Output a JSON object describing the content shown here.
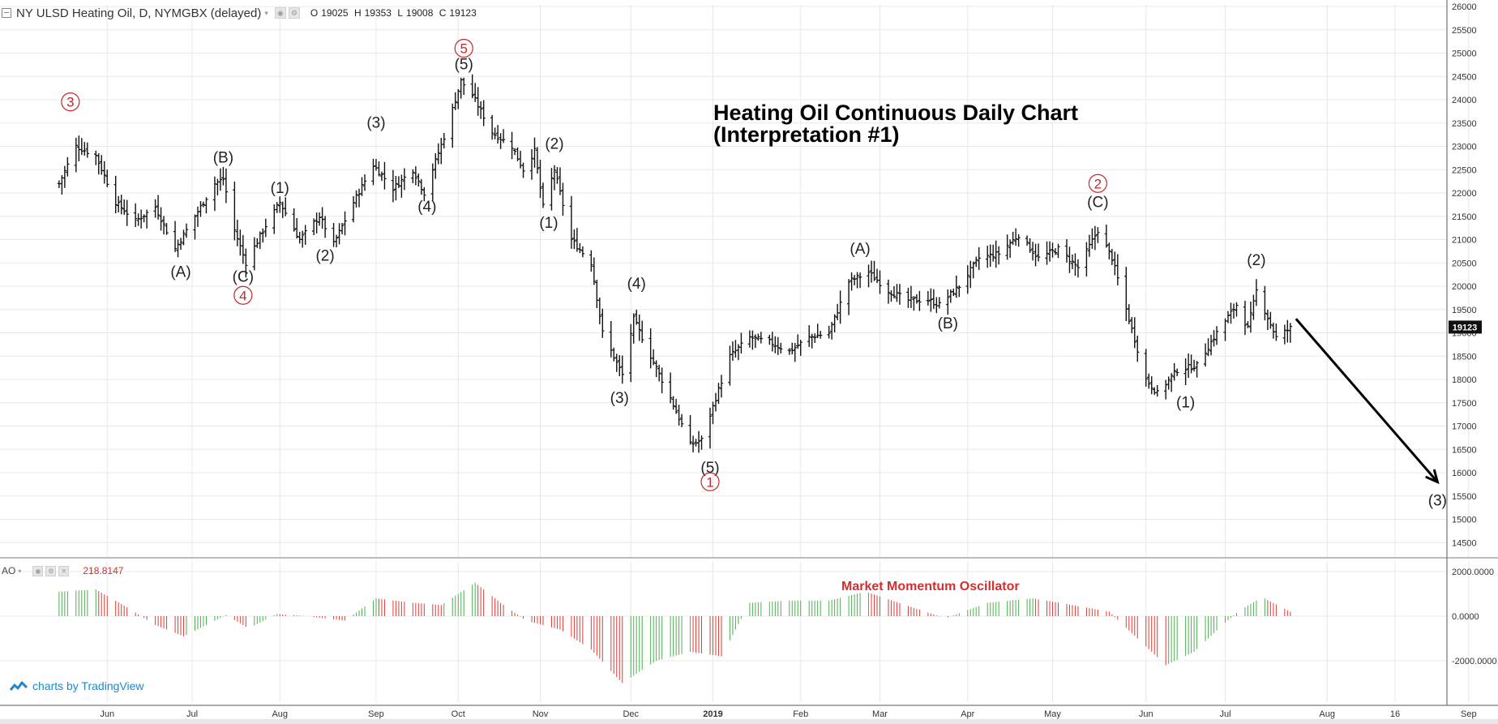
{
  "header": {
    "symbol": "NY ULSD Heating Oil, D, NYMGBX (delayed)",
    "ohlc": [
      {
        "key": "O",
        "value": "19025"
      },
      {
        "key": "H",
        "value": "19353"
      },
      {
        "key": "L",
        "value": "19008"
      },
      {
        "key": "C",
        "value": "19123"
      }
    ]
  },
  "indicator": {
    "name": "AO",
    "value": "218.8147"
  },
  "branding": "charts by TradingView",
  "colors": {
    "bar": "#111111",
    "ao_up": "#4caf50",
    "ao_down": "#e53935",
    "count_red": "#c62828",
    "price_tag": "#111111",
    "grid": "#e8e8e8"
  },
  "chart_data": [
    {
      "type": "ohlc",
      "title": "Heating Oil Continuous Daily Chart",
      "subtitle": "(Interpretation #1)",
      "ylim": [
        14000,
        26000
      ],
      "y_ticks": [
        14500,
        15000,
        15500,
        16000,
        16500,
        17000,
        17500,
        18000,
        18500,
        19000,
        19500,
        20000,
        20500,
        21000,
        21500,
        22000,
        22500,
        23000,
        23500,
        24000,
        24500,
        25000,
        25500,
        26000
      ],
      "x_ticks": [
        "Jun",
        "Jul",
        "Aug",
        "Sep",
        "Oct",
        "Nov",
        "Dec",
        "2019",
        "Feb",
        "Mar",
        "Apr",
        "May",
        "Jun",
        "Jul",
        "Aug",
        "16",
        "Sep"
      ],
      "last_price": "19123",
      "price_path": [
        {
          "date": "2018-05-15",
          "close": 22200
        },
        {
          "date": "2018-05-21",
          "close": 23000
        },
        {
          "date": "2018-05-28",
          "close": 22800
        },
        {
          "date": "2018-06-04",
          "close": 21800
        },
        {
          "date": "2018-06-11",
          "close": 21400
        },
        {
          "date": "2018-06-18",
          "close": 21700
        },
        {
          "date": "2018-06-25",
          "close": 20800
        },
        {
          "date": "2018-07-02",
          "close": 21500
        },
        {
          "date": "2018-07-09",
          "close": 22200
        },
        {
          "date": "2018-07-12",
          "close": 22300
        },
        {
          "date": "2018-07-16",
          "close": 21200
        },
        {
          "date": "2018-07-20",
          "close": 20500
        },
        {
          "date": "2018-07-27",
          "close": 21300
        },
        {
          "date": "2018-08-01",
          "close": 21800
        },
        {
          "date": "2018-08-08",
          "close": 21000
        },
        {
          "date": "2018-08-15",
          "close": 21500
        },
        {
          "date": "2018-08-20",
          "close": 20900
        },
        {
          "date": "2018-08-27",
          "close": 21800
        },
        {
          "date": "2018-09-03",
          "close": 22600
        },
        {
          "date": "2018-09-10",
          "close": 22100
        },
        {
          "date": "2018-09-17",
          "close": 22500
        },
        {
          "date": "2018-09-21",
          "close": 22000
        },
        {
          "date": "2018-09-28",
          "close": 23200
        },
        {
          "date": "2018-10-04",
          "close": 24400
        },
        {
          "date": "2018-10-08",
          "close": 24100
        },
        {
          "date": "2018-10-15",
          "close": 23300
        },
        {
          "date": "2018-10-22",
          "close": 23000
        },
        {
          "date": "2018-10-26",
          "close": 22500
        },
        {
          "date": "2018-10-30",
          "close": 22900
        },
        {
          "date": "2018-11-02",
          "close": 21700
        },
        {
          "date": "2018-11-06",
          "close": 22500
        },
        {
          "date": "2018-11-12",
          "close": 21000
        },
        {
          "date": "2018-11-19",
          "close": 20500
        },
        {
          "date": "2018-11-23",
          "close": 19000
        },
        {
          "date": "2018-11-30",
          "close": 18100
        },
        {
          "date": "2018-12-04",
          "close": 19300
        },
        {
          "date": "2018-12-10",
          "close": 18500
        },
        {
          "date": "2018-12-17",
          "close": 17600
        },
        {
          "date": "2018-12-24",
          "close": 16600
        },
        {
          "date": "2018-12-28",
          "close": 16700
        },
        {
          "date": "2019-01-07",
          "close": 18500
        },
        {
          "date": "2019-01-14",
          "close": 18900
        },
        {
          "date": "2019-01-21",
          "close": 18800
        },
        {
          "date": "2019-01-28",
          "close": 18600
        },
        {
          "date": "2019-02-04",
          "close": 18900
        },
        {
          "date": "2019-02-11",
          "close": 19000
        },
        {
          "date": "2019-02-18",
          "close": 20100
        },
        {
          "date": "2019-02-25",
          "close": 20300
        },
        {
          "date": "2019-03-04",
          "close": 19900
        },
        {
          "date": "2019-03-11",
          "close": 19700
        },
        {
          "date": "2019-03-18",
          "close": 19700
        },
        {
          "date": "2019-03-22",
          "close": 19600
        },
        {
          "date": "2019-03-29",
          "close": 20000
        },
        {
          "date": "2019-04-05",
          "close": 20600
        },
        {
          "date": "2019-04-12",
          "close": 20700
        },
        {
          "date": "2019-04-19",
          "close": 21100
        },
        {
          "date": "2019-04-26",
          "close": 20600
        },
        {
          "date": "2019-05-03",
          "close": 20800
        },
        {
          "date": "2019-05-10",
          "close": 20400
        },
        {
          "date": "2019-05-17",
          "close": 21200
        },
        {
          "date": "2019-05-22",
          "close": 20600
        },
        {
          "date": "2019-05-27",
          "close": 19500
        },
        {
          "date": "2019-06-03",
          "close": 18000
        },
        {
          "date": "2019-06-07",
          "close": 17700
        },
        {
          "date": "2019-06-14",
          "close": 18200
        },
        {
          "date": "2019-06-21",
          "close": 18300
        },
        {
          "date": "2019-06-28",
          "close": 19000
        },
        {
          "date": "2019-07-05",
          "close": 19600
        },
        {
          "date": "2019-07-09",
          "close": 19100
        },
        {
          "date": "2019-07-12",
          "close": 19900
        },
        {
          "date": "2019-07-19",
          "close": 18900
        },
        {
          "date": "2019-07-24",
          "close": 19100
        }
      ],
      "projection": {
        "from": {
          "date": "2019-07-26",
          "price": 19300
        },
        "to": {
          "date": "2019-09-14",
          "price": 15800
        }
      },
      "wave_labels": [
        {
          "text": "3",
          "circled": true,
          "date": "2018-05-19",
          "price": 23850
        },
        {
          "text": "(A)",
          "circled": false,
          "date": "2018-06-27",
          "price": 20200
        },
        {
          "text": "(B)",
          "circled": false,
          "date": "2018-07-12",
          "price": 22650
        },
        {
          "text": "(C)",
          "circled": false,
          "date": "2018-07-19",
          "price": 20100
        },
        {
          "text": "4",
          "circled": true,
          "date": "2018-07-19",
          "price": 19700
        },
        {
          "text": "(1)",
          "circled": false,
          "date": "2018-08-01",
          "price": 22000
        },
        {
          "text": "(2)",
          "circled": false,
          "date": "2018-08-17",
          "price": 20550
        },
        {
          "text": "(3)",
          "circled": false,
          "date": "2018-09-04",
          "price": 23400
        },
        {
          "text": "(4)",
          "circled": false,
          "date": "2018-09-22",
          "price": 21600
        },
        {
          "text": "5",
          "circled": true,
          "date": "2018-10-05",
          "price": 25000
        },
        {
          "text": "(5)",
          "circled": false,
          "date": "2018-10-05",
          "price": 24650
        },
        {
          "text": "(2)",
          "circled": false,
          "date": "2018-11-06",
          "price": 22950
        },
        {
          "text": "(1)",
          "circled": false,
          "date": "2018-11-04",
          "price": 21250
        },
        {
          "text": "(4)",
          "circled": false,
          "date": "2018-12-05",
          "price": 19950
        },
        {
          "text": "(3)",
          "circled": false,
          "date": "2018-11-29",
          "price": 17500
        },
        {
          "text": "(5)",
          "circled": false,
          "date": "2018-12-31",
          "price": 16000
        },
        {
          "text": "1",
          "circled": true,
          "date": "2018-12-31",
          "price": 15700
        },
        {
          "text": "(A)",
          "circled": false,
          "date": "2019-02-22",
          "price": 20700
        },
        {
          "text": "(B)",
          "circled": false,
          "date": "2019-03-25",
          "price": 19100
        },
        {
          "text": "2",
          "circled": true,
          "date": "2019-05-17",
          "price": 22100
        },
        {
          "text": "(C)",
          "circled": false,
          "date": "2019-05-17",
          "price": 21700
        },
        {
          "text": "(1)",
          "circled": false,
          "date": "2019-06-17",
          "price": 17400
        },
        {
          "text": "(2)",
          "circled": false,
          "date": "2019-07-12",
          "price": 20450
        },
        {
          "text": "(3)",
          "circled": false,
          "date": "2019-09-14",
          "price": 15300
        }
      ]
    },
    {
      "type": "bar",
      "title": "Market Momentum Oscillator",
      "ylim": [
        -3000,
        3000
      ],
      "y_ticks": [
        -2000,
        0,
        2000
      ],
      "y_tick_labels": [
        "-2000.0000",
        "0.0000",
        "2000.0000"
      ],
      "value_path": [
        {
          "date": "2018-05-15",
          "value": 1100
        },
        {
          "date": "2018-05-28",
          "value": 1200
        },
        {
          "date": "2018-06-08",
          "value": 400
        },
        {
          "date": "2018-06-18",
          "value": -400
        },
        {
          "date": "2018-06-28",
          "value": -900
        },
        {
          "date": "2018-07-06",
          "value": -400
        },
        {
          "date": "2018-07-13",
          "value": 50
        },
        {
          "date": "2018-07-21",
          "value": -550
        },
        {
          "date": "2018-07-31",
          "value": 100
        },
        {
          "date": "2018-08-10",
          "value": 0
        },
        {
          "date": "2018-08-24",
          "value": -200
        },
        {
          "date": "2018-09-04",
          "value": 800
        },
        {
          "date": "2018-09-17",
          "value": 600
        },
        {
          "date": "2018-09-27",
          "value": 500
        },
        {
          "date": "2018-10-09",
          "value": 1500
        },
        {
          "date": "2018-10-18",
          "value": 600
        },
        {
          "date": "2018-10-27",
          "value": -200
        },
        {
          "date": "2018-11-08",
          "value": -600
        },
        {
          "date": "2018-11-19",
          "value": -1500
        },
        {
          "date": "2018-11-30",
          "value": -3000
        },
        {
          "date": "2018-12-12",
          "value": -2000
        },
        {
          "date": "2018-12-24",
          "value": -1600
        },
        {
          "date": "2019-01-04",
          "value": -1800
        },
        {
          "date": "2019-01-14",
          "value": 600
        },
        {
          "date": "2019-01-28",
          "value": 700
        },
        {
          "date": "2019-02-11",
          "value": 700
        },
        {
          "date": "2019-02-24",
          "value": 1100
        },
        {
          "date": "2019-03-10",
          "value": 500
        },
        {
          "date": "2019-03-24",
          "value": -100
        },
        {
          "date": "2019-04-08",
          "value": 600
        },
        {
          "date": "2019-04-24",
          "value": 800
        },
        {
          "date": "2019-05-08",
          "value": 500
        },
        {
          "date": "2019-05-21",
          "value": 200
        },
        {
          "date": "2019-05-31",
          "value": -1000
        },
        {
          "date": "2019-06-10",
          "value": -2200
        },
        {
          "date": "2019-06-20",
          "value": -1600
        },
        {
          "date": "2019-06-30",
          "value": -400
        },
        {
          "date": "2019-07-06",
          "value": 250
        },
        {
          "date": "2019-07-14",
          "value": 850
        },
        {
          "date": "2019-07-24",
          "value": 200
        }
      ]
    }
  ]
}
